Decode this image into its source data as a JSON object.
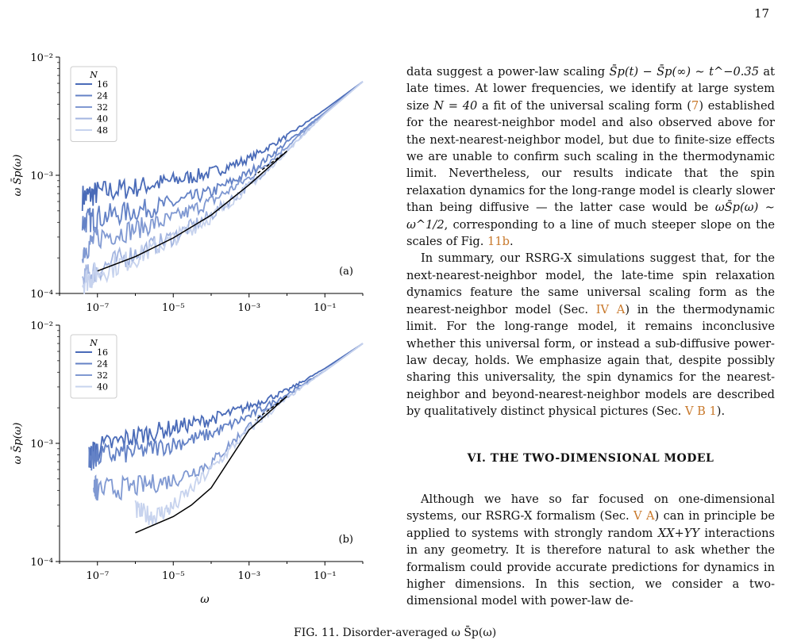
{
  "page_number": "17",
  "figure": {
    "panels": [
      {
        "label": "(a)",
        "legend_title": "N",
        "ylabel": "ω S̄p(ω)",
        "xlabel": "",
        "x_ticks": [
          "10⁻⁷",
          "10⁻⁵",
          "10⁻³",
          "10⁻¹"
        ],
        "y_ticks": [
          "10⁻²",
          "10⁻³",
          "10⁻⁴"
        ]
      },
      {
        "label": "(b)",
        "legend_title": "N",
        "ylabel": "ω S̄p(ω)",
        "xlabel": "ω",
        "x_ticks": [
          "10⁻⁷",
          "10⁻⁵",
          "10⁻³",
          "10⁻¹"
        ],
        "y_ticks": [
          "10⁻²",
          "10⁻³",
          "10⁻⁴"
        ]
      }
    ]
  },
  "chart_data": [
    {
      "type": "line",
      "x_scale": "log",
      "y_scale": "log",
      "xlim": [
        1e-08,
        1
      ],
      "ylim": [
        0.0001,
        0.01
      ],
      "xlabel": "",
      "ylabel": "ω S̄p(ω)",
      "legend": "top-left",
      "legend_title": "N",
      "series": [
        {
          "name": "16",
          "color": "#4a6bb8",
          "x": [
            4e-08,
            1e-07,
            1e-06,
            1e-05,
            0.0001,
            0.001,
            0.01,
            0.1,
            1
          ],
          "y": [
            0.00065,
            0.00071,
            0.00079,
            0.0009,
            0.00105,
            0.00138,
            0.00215,
            0.0036,
            0.0062
          ]
        },
        {
          "name": "24",
          "color": "#6482c6",
          "x": [
            4e-08,
            1e-07,
            1e-06,
            1e-05,
            0.0001,
            0.001,
            0.01,
            0.1,
            1
          ],
          "y": [
            0.0004,
            0.00044,
            0.0005,
            0.00058,
            0.00072,
            0.00105,
            0.0019,
            0.0034,
            0.0062
          ]
        },
        {
          "name": "32",
          "color": "#8099d2",
          "x": [
            4e-08,
            1e-07,
            1e-06,
            1e-05,
            0.0001,
            0.001,
            0.01,
            0.1,
            1
          ],
          "y": [
            0.00023,
            0.0003,
            0.00035,
            0.00043,
            0.0006,
            0.00095,
            0.00175,
            0.0034,
            0.0062
          ]
        },
        {
          "name": "40",
          "color": "#a3b5e0",
          "x": [
            4e-08,
            1e-07,
            1e-06,
            1e-05,
            0.0001,
            0.001,
            0.01,
            0.1,
            1
          ],
          "y": [
            0.00013,
            0.00016,
            0.00022,
            0.0003,
            0.00046,
            0.00082,
            0.0016,
            0.0033,
            0.0062
          ]
        },
        {
          "name": "48",
          "color": "#c7d3ee",
          "x": [
            4e-08,
            1e-07,
            1e-06,
            1e-05,
            0.0001,
            0.001,
            0.01,
            0.1,
            1
          ],
          "y": [
            0.000125,
            0.00015,
            0.0002,
            0.00029,
            0.00044,
            0.0008,
            0.0016,
            0.0033,
            0.0062
          ]
        }
      ],
      "fit": {
        "x": [
          1e-07,
          1e-06,
          1e-05,
          0.0001,
          0.001,
          0.01
        ],
        "y": [
          0.000155,
          0.000205,
          0.000295,
          0.00046,
          0.00083,
          0.0016
        ],
        "dashed_to": [
          0.003,
          0.00115
        ]
      }
    },
    {
      "type": "line",
      "x_scale": "log",
      "y_scale": "log",
      "xlim": [
        1e-08,
        1
      ],
      "ylim": [
        0.0001,
        0.01
      ],
      "xlabel": "ω",
      "ylabel": "ω S̄p(ω)",
      "legend": "top-left",
      "legend_title": "N",
      "series": [
        {
          "name": "16",
          "color": "#4a6bb8",
          "x": [
            6e-08,
            1e-07,
            1e-06,
            1e-05,
            0.0001,
            0.001,
            0.01,
            0.1,
            1
          ],
          "y": [
            0.00075,
            0.0009,
            0.00115,
            0.00135,
            0.0016,
            0.00205,
            0.0028,
            0.0043,
            0.007
          ]
        },
        {
          "name": "24",
          "color": "#6482c6",
          "x": [
            6e-08,
            1e-07,
            1e-06,
            1e-05,
            0.0001,
            0.001,
            0.01,
            0.1,
            1
          ],
          "y": [
            0.00075,
            0.00078,
            0.00085,
            0.00098,
            0.0012,
            0.0017,
            0.0026,
            0.0041,
            0.007
          ]
        },
        {
          "name": "32",
          "color": "#8099d2",
          "x": [
            8e-08,
            1e-07,
            1e-06,
            1e-05,
            0.0001,
            0.001,
            0.01,
            0.1,
            1
          ],
          "y": [
            0.00043,
            0.0004,
            0.00043,
            0.00049,
            0.00068,
            0.0014,
            0.0025,
            0.0041,
            0.007
          ]
        },
        {
          "name": "40",
          "color": "#c7d3ee",
          "x": [
            1e-06,
            3e-06,
            1e-05,
            0.0001,
            0.001,
            0.01,
            0.1,
            1
          ],
          "y": [
            0.00027,
            0.00024,
            0.00029,
            0.0006,
            0.0013,
            0.0024,
            0.0041,
            0.007
          ]
        }
      ],
      "fit": {
        "x": [
          1e-06,
          1e-05,
          3e-05,
          0.0001,
          0.001,
          0.01
        ],
        "y": [
          0.000175,
          0.00024,
          0.0003,
          0.00042,
          0.0013,
          0.0025
        ],
        "dashed_to": [
          0.003,
          0.0018
        ]
      }
    }
  ],
  "text": {
    "p1_a": "data suggest a power-law scaling ",
    "p1_formula": "S̄p(t) − S̄p(∞) ∼ t^−0.35",
    "p1_b": " at late times. At lower frequencies, we identify at large system size ",
    "p1_n": "N = 40",
    "p1_c": " a fit of the universal scaling form (",
    "p1_ref1": "7",
    "p1_d": ") established for the nearest-neighbor model and also observed above for the next-nearest-neighbor model, but due to finite-size effects we are unable to confirm such scaling in the thermodynamic limit. Nevertheless, our results indicate that the spin relaxation dynamics for the long-range model is clearly slower than being diffusive — the latter case would be ",
    "p1_formula2": "ωS̄p(ω) ∼ ω^1/2",
    "p1_e": ", corresponding to a line of much steeper slope on the scales of Fig. ",
    "p1_ref2": "11b",
    "p1_f": ".",
    "p2_a": "In summary, our RSRG-X simulations suggest that, for the next-nearest-neighbor model, the late-time spin relaxation dynamics feature the same universal scaling form as the nearest-neighbor model (Sec. ",
    "p2_ref1": "IV A",
    "p2_b": ") in the thermodynamic limit. For the long-range model, it remains inconclusive whether this universal form, or instead a sub-diffusive power-law decay, holds. We emphasize again that, despite possibly sharing this universality, the spin dynamics for the nearest-neighbor and beyond-nearest-neighbor models are described by qualitatively distinct physical pictures (Sec. ",
    "p2_ref2": "V B 1",
    "p2_c": ").",
    "section_title": "VI.   THE TWO-DIMENSIONAL MODEL",
    "p3_a": "Although we have so far focused on one-dimensional systems, our RSRG-X formalism (Sec. ",
    "p3_ref1": "V A",
    "p3_b": ") can in principle be applied to systems with strongly random ",
    "p3_xx": "XX+YY",
    "p3_c": " interactions in any geometry. It is therefore natural to ask whether the formalism could provide accurate predictions for dynamics in higher dimensions. In this section, we consider a two-dimensional model with power-law de-"
  },
  "caption_fragment": "FIG. 11. Disorder-averaged ω S̄p(ω)"
}
